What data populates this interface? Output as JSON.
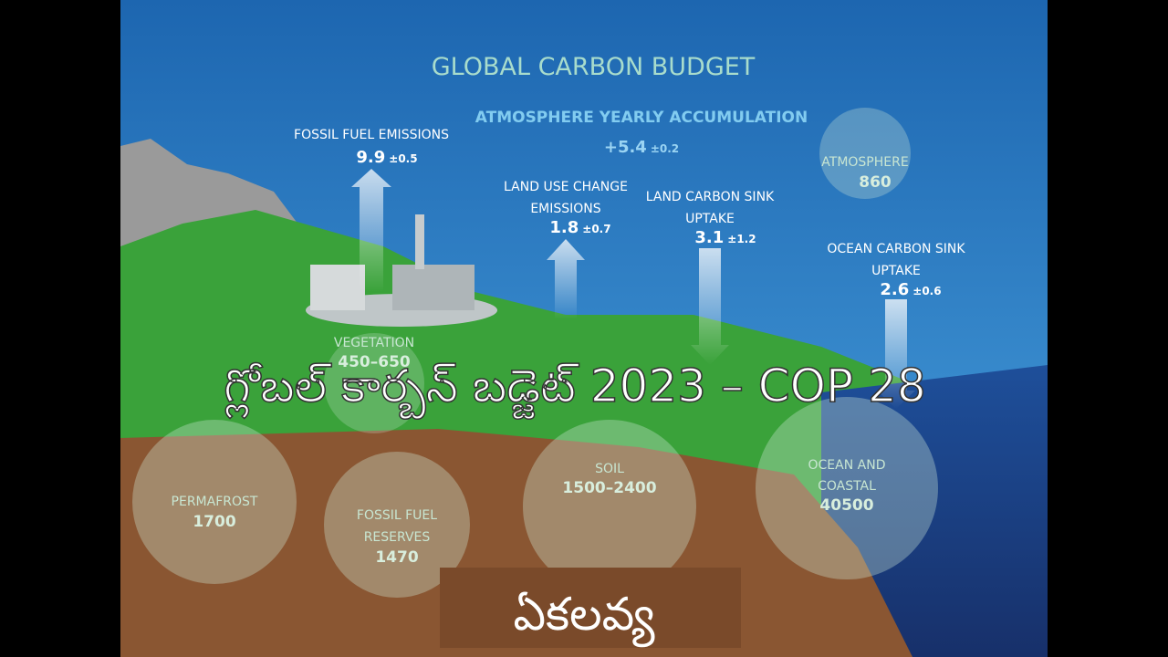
{
  "header": {
    "title": "GLOBAL CARBON BUDGET"
  },
  "flows": [
    {
      "label": [
        "ATMOSPHERE YEARLY ACCUMULATION"
      ],
      "value": "+5.4",
      "uncertainty": "±0.2"
    },
    {
      "label": [
        "FOSSIL FUEL EMISSIONS"
      ],
      "value": "9.9",
      "uncertainty": "±0.5"
    },
    {
      "label": [
        "LAND USE CHANGE",
        "EMISSIONS"
      ],
      "value": "1.8",
      "uncertainty": "±0.7"
    },
    {
      "label": [
        "LAND CARBON SINK",
        "UPTAKE"
      ],
      "value": "3.1",
      "uncertainty": "±1.2"
    },
    {
      "label": [
        "OCEAN CARBON SINK",
        "UPTAKE"
      ],
      "value": "2.6",
      "uncertainty": "±0.6"
    }
  ],
  "stocks": [
    {
      "label": [
        "ATMOSPHERE"
      ],
      "value": "860"
    },
    {
      "label": [
        "VEGETATION"
      ],
      "value": "450–650"
    },
    {
      "label": [
        "PERMAFROST"
      ],
      "value": "1700"
    },
    {
      "label": [
        "FOSSIL FUEL",
        "RESERVES"
      ],
      "value": "1470"
    },
    {
      "label": [
        "SOIL"
      ],
      "value": "1500–2400"
    },
    {
      "label": [
        "OCEAN AND",
        "COASTAL"
      ],
      "value": "40500"
    }
  ],
  "overlay": {
    "title": "గ్లోబల్ కార్బన్ బడ్జెట్ 2023 – COP 28",
    "footer": "ఏకలవ్య"
  }
}
